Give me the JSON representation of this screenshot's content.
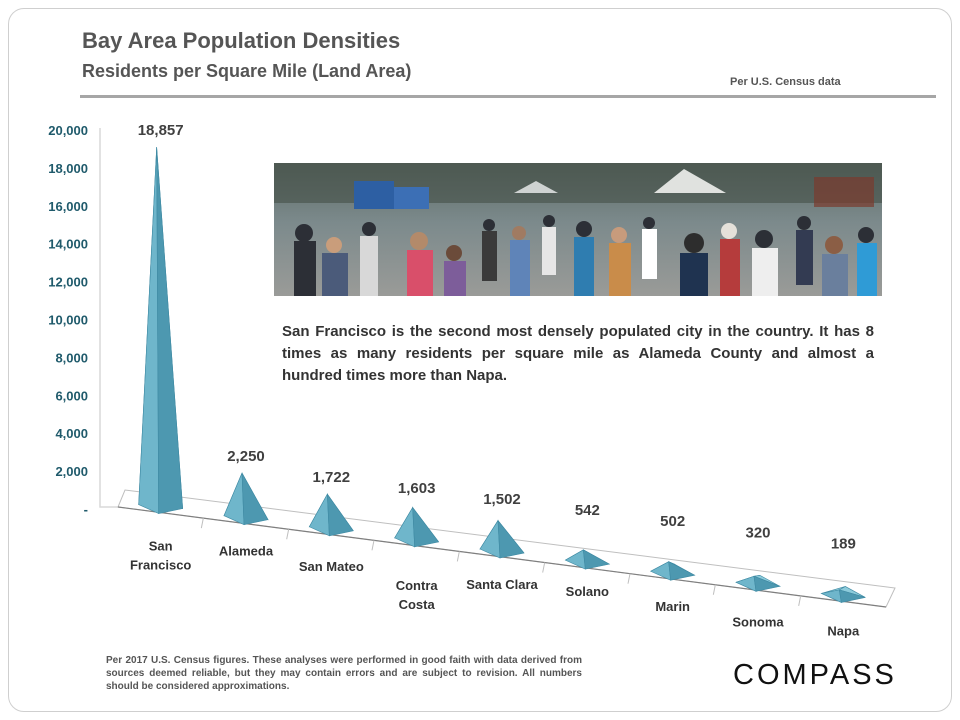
{
  "header": {
    "title": "Bay Area Population Densities",
    "subtitle": "Residents per Square Mile (Land Area)",
    "source": "Per U.S. Census data"
  },
  "annotation": "San Francisco is the second most densely populated city in the country. It has 8 times as many residents per square mile as Alameda County and almost a hundred times more than Napa.",
  "photo": {
    "description_icon": "street-crowd-photo"
  },
  "footer": {
    "disclaimer": "Per 2017 U.S. Census figures. These analyses were performed in good faith with data derived from sources deemed reliable, but they may contain errors and are subject to revision. All numbers should be considered approximations.",
    "logo": "COMPASS"
  },
  "colors": {
    "pyramid_light": "#8ccbdb",
    "pyramid_mid": "#6fb6cb",
    "pyramid_dark": "#4d98b0",
    "axis_text": "#1f5a6b",
    "text": "#333333"
  },
  "chart_data": {
    "type": "bar",
    "categories": [
      "San Francisco",
      "Alameda",
      "San Mateo",
      "Contra Costa",
      "Santa Clara",
      "Solano",
      "Marin",
      "Sonoma",
      "Napa"
    ],
    "category_labels": [
      [
        "San",
        "Francisco"
      ],
      [
        "Alameda"
      ],
      [
        "San Mateo"
      ],
      [
        "Contra",
        "Costa"
      ],
      [
        "Santa Clara"
      ],
      [
        "Solano"
      ],
      [
        "Marin"
      ],
      [
        "Sonoma"
      ],
      [
        "Napa"
      ]
    ],
    "values": [
      18857,
      2250,
      1722,
      1603,
      1502,
      542,
      502,
      320,
      189
    ],
    "data_labels": [
      "18,857",
      "2,250",
      "1,722",
      "1,603",
      "1,502",
      "542",
      "502",
      "320",
      "189"
    ],
    "y_ticks": [
      "-",
      "2,000",
      "4,000",
      "6,000",
      "8,000",
      "10,000",
      "12,000",
      "14,000",
      "16,000",
      "18,000",
      "20,000"
    ],
    "ylim": [
      0,
      20000
    ],
    "bar_shape": "3d-pyramid",
    "grid": false,
    "legend": "none"
  }
}
